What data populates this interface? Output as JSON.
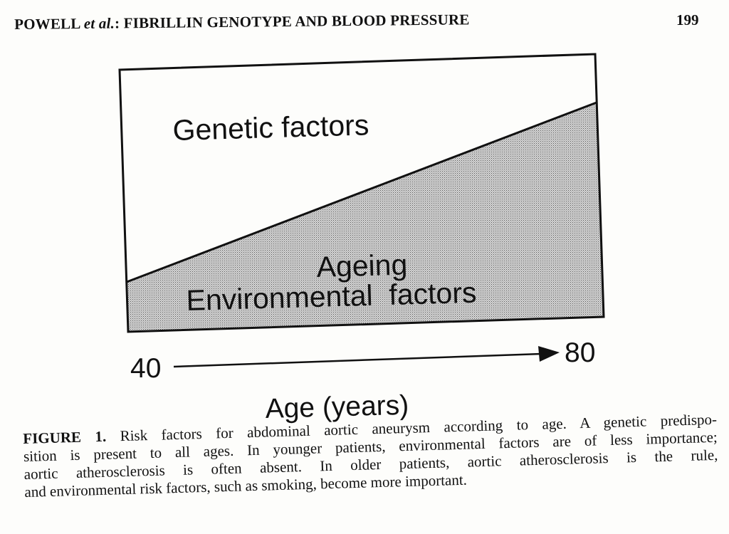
{
  "header": {
    "author": "POWELL",
    "etal": "et al.",
    "title": ": FIBRILLIN GENOTYPE AND BLOOD PRESSURE",
    "page_number": "199"
  },
  "figure": {
    "upper_label": "Genetic factors",
    "lower_label_1": "Ageing",
    "lower_label_2": "Environmental  factors",
    "axis_start": "40",
    "axis_end": "80",
    "axis_title": "Age (years)"
  },
  "caption": {
    "label": "FIGURE 1.",
    "line1": "Risk factors for abdominal aortic aneurysm according to age. A genetic predispo-",
    "line2": "sition is present to all ages. In younger patients, environmental factors are of less importance;",
    "line3": "aortic atherosclerosis is often absent. In older patients, aortic atherosclerosis is the rule,",
    "line4": "and environmental risk factors, such as smoking, become more important."
  }
}
